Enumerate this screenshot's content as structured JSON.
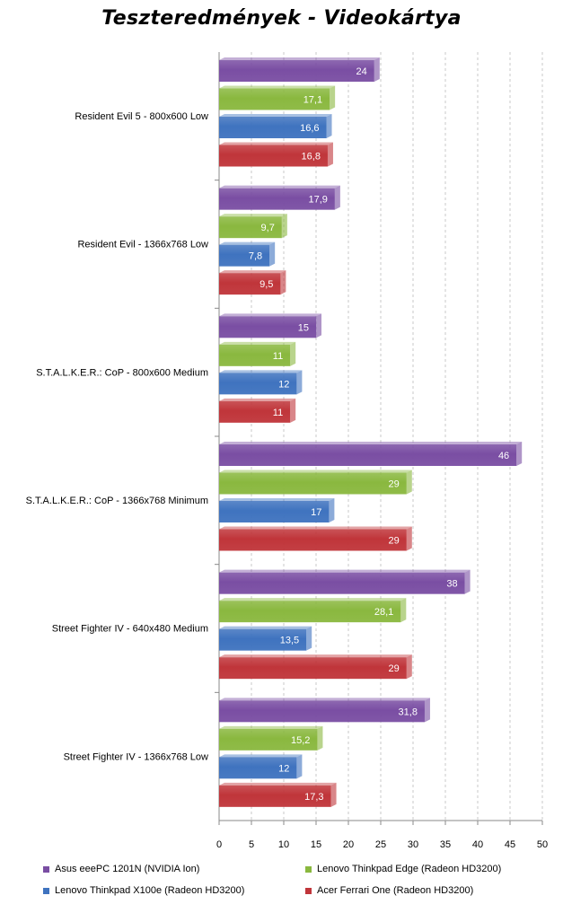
{
  "title": "Teszteredmények - Videokártya",
  "chart_data": {
    "type": "bar",
    "orientation": "horizontal",
    "title": "Teszteredmények - Videokártya",
    "categories": [
      "Resident Evil 5 - 800x600 Low",
      "Resident Evil - 1366x768 Low",
      "S.T.A.L.K.E.R.:  CoP - 800x600 Medium",
      "S.T.A.L.K.E.R.:  CoP - 1366x768 Minimum",
      "Street Fighter IV - 640x480 Medium",
      "Street Fighter IV - 1366x768 Low"
    ],
    "series": [
      {
        "name": "Asus eeePC 1201N (NVIDIA  Ion)",
        "color": "#7a4ea3",
        "values": [
          24,
          17.9,
          15,
          46,
          38,
          31.8
        ],
        "labels": [
          "24",
          "17,9",
          "15",
          "46",
          "38",
          "31,8"
        ]
      },
      {
        "name": "Lenovo Thinkpad Edge  (Radeon HD3200)",
        "color": "#8ab83f",
        "values": [
          17.1,
          9.7,
          11,
          29,
          28.1,
          15.2
        ],
        "labels": [
          "17,1",
          "9,7",
          "11",
          "29",
          "28,1",
          "15,2"
        ]
      },
      {
        "name": "Lenovo Thinkpad X100e (Radeon  HD3200)",
        "color": "#3f73bf",
        "values": [
          16.6,
          7.8,
          12,
          17,
          13.5,
          12
        ],
        "labels": [
          "16,6",
          "7,8",
          "12",
          "17",
          "13,5",
          "12"
        ]
      },
      {
        "name": "Acer Ferrari One (Radeon HD3200)",
        "color": "#c0353a",
        "values": [
          16.8,
          9.5,
          11,
          29,
          29,
          17.3
        ],
        "labels": [
          "16,8",
          "9,5",
          "11",
          "29",
          "29",
          "17,3"
        ]
      }
    ],
    "xlim": [
      0,
      50
    ],
    "xticks": [
      "0",
      "5",
      "10",
      "15",
      "20",
      "25",
      "30",
      "35",
      "40",
      "45",
      "50"
    ],
    "grid": true,
    "legend_position": "bottom"
  }
}
